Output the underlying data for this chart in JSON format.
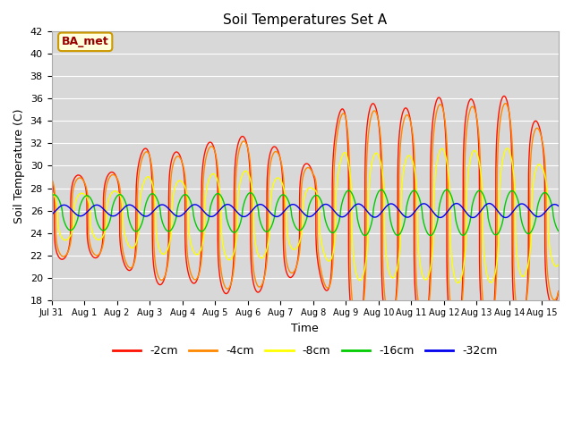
{
  "title": "Soil Temperatures Set A",
  "xlabel": "Time",
  "ylabel": "Soil Temperature (C)",
  "ylim": [
    18,
    42
  ],
  "yticks": [
    18,
    20,
    22,
    24,
    26,
    28,
    30,
    32,
    34,
    36,
    38,
    40,
    42
  ],
  "annotation": "BA_met",
  "annotation_color": "#990000",
  "annotation_bg": "#ffffdd",
  "annotation_edge": "#cc9900",
  "bg_color": "#e0e0e0",
  "plot_bg": "#d8d8d8",
  "series": [
    {
      "label": "-2cm",
      "color": "#ff1100",
      "depth": 0
    },
    {
      "label": "-4cm",
      "color": "#ff8800",
      "depth": 1
    },
    {
      "label": "-8cm",
      "color": "#ffff00",
      "depth": 2
    },
    {
      "label": "-16cm",
      "color": "#00cc00",
      "depth": 3
    },
    {
      "label": "-32cm",
      "color": "#0000ee",
      "depth": 4
    }
  ],
  "num_days": 15.5,
  "points_per_day": 240,
  "mean_temp": 25.5,
  "amplitudes": [
    8.0,
    7.5,
    4.5,
    1.8,
    0.55
  ],
  "phase_shifts": [
    0.0,
    0.04,
    0.1,
    0.25,
    0.55
  ],
  "amplitude_mods": [
    [
      0,
      0.5,
      1,
      0.45,
      2,
      0.5,
      3,
      0.8,
      4,
      0.7,
      5,
      0.85,
      6,
      0.9,
      7,
      0.75,
      8,
      0.55,
      9,
      1.3,
      10,
      1.25,
      11,
      1.2,
      12,
      1.35,
      13,
      1.3,
      14,
      1.35,
      15,
      1.0
    ],
    [
      0,
      0.5,
      1,
      0.45,
      2,
      0.5,
      3,
      0.8,
      4,
      0.7,
      5,
      0.85,
      6,
      0.9,
      7,
      0.75,
      8,
      0.55,
      9,
      1.3,
      10,
      1.25,
      11,
      1.2,
      12,
      1.35,
      13,
      1.3,
      14,
      1.35,
      15,
      1.0
    ],
    [
      0,
      0.5,
      1,
      0.45,
      2,
      0.5,
      3,
      0.8,
      4,
      0.7,
      5,
      0.85,
      6,
      0.9,
      7,
      0.75,
      8,
      0.55,
      9,
      1.3,
      10,
      1.25,
      11,
      1.2,
      12,
      1.35,
      13,
      1.3,
      14,
      1.35,
      15,
      1.0
    ],
    [
      0,
      0.9,
      1,
      0.85,
      2,
      0.9,
      3,
      0.95,
      4,
      0.9,
      5,
      0.95,
      6,
      1.0,
      7,
      0.9,
      8,
      0.85,
      9,
      1.1,
      10,
      1.15,
      11,
      1.1,
      12,
      1.15,
      13,
      1.1,
      14,
      1.1,
      15,
      1.0
    ],
    [
      0,
      0.9,
      1,
      0.9,
      2,
      0.9,
      3,
      0.95,
      4,
      0.95,
      5,
      1.0,
      6,
      1.0,
      7,
      1.0,
      8,
      1.0,
      9,
      1.05,
      10,
      1.1,
      11,
      1.1,
      12,
      1.15,
      13,
      1.15,
      14,
      1.15,
      15,
      1.0
    ]
  ],
  "mean_shift": [
    0.0,
    0.0,
    0.0,
    0.3,
    0.5
  ],
  "sharpness": [
    4.0,
    3.5,
    2.5,
    1.5,
    1.0
  ],
  "grid_color": "#ffffff",
  "linewidth": 1.0
}
